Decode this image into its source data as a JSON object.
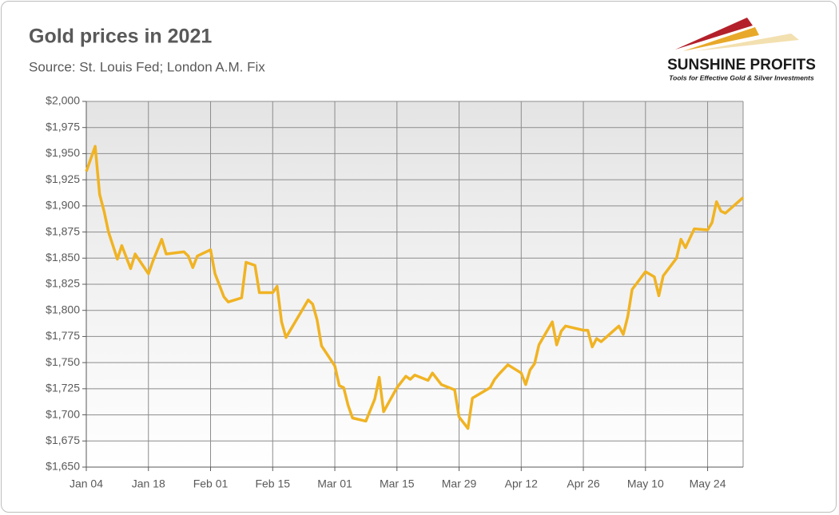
{
  "logo": {
    "name": "SUNSHINE PROFITS",
    "tagline": "Tools for Effective Gold & Silver Investments"
  },
  "chart_data": {
    "type": "line",
    "title": "Gold prices in 2021",
    "subtitle": "Source: St. Louis Fed; London A.M. Fix",
    "color": "#f0b323",
    "grid": true,
    "x": [
      0,
      2,
      3,
      4,
      5,
      7,
      8,
      10,
      11,
      14,
      15,
      17,
      18,
      22,
      23,
      24,
      25,
      28,
      29,
      31,
      32,
      35,
      36,
      38,
      39,
      42,
      43,
      44,
      45,
      50,
      51,
      52,
      53,
      56,
      57,
      58,
      59,
      60,
      63,
      65,
      66,
      67,
      70,
      72,
      73,
      74,
      77,
      78,
      80,
      83,
      84,
      86,
      87,
      91,
      92,
      93,
      95,
      98,
      99,
      100,
      101,
      102,
      105,
      106,
      107,
      108,
      112,
      113,
      114,
      115,
      116,
      120,
      121,
      122,
      123,
      126,
      128,
      129,
      130,
      133,
      134,
      135,
      137,
      140,
      141,
      142,
      143,
      144,
      148
    ],
    "values": [
      1933,
      1957,
      1911,
      1895,
      1875,
      1849,
      1862,
      1840,
      1854,
      1835,
      1847,
      1868,
      1854,
      1856,
      1852,
      1841,
      1852,
      1858,
      1835,
      1813,
      1808,
      1812,
      1846,
      1843,
      1817,
      1817,
      1823,
      1789,
      1774,
      1810,
      1806,
      1791,
      1766,
      1747,
      1728,
      1726,
      1709,
      1697,
      1694,
      1715,
      1736,
      1703,
      1726,
      1737,
      1734,
      1738,
      1733,
      1740,
      1729,
      1724,
      1698,
      1687,
      1716,
      1726,
      1734,
      1739,
      1748,
      1740,
      1729,
      1743,
      1749,
      1767,
      1789,
      1767,
      1780,
      1785,
      1781,
      1781,
      1765,
      1773,
      1770,
      1785,
      1777,
      1794,
      1820,
      1837,
      1832,
      1814,
      1833,
      1850,
      1868,
      1860,
      1878,
      1877,
      1884,
      1904,
      1895,
      1893,
      1908
    ],
    "xlim": [
      0,
      148
    ],
    "xticks": [
      {
        "value": 0,
        "label": "Jan 04"
      },
      {
        "value": 14,
        "label": "Jan 18"
      },
      {
        "value": 28,
        "label": "Feb 01"
      },
      {
        "value": 42,
        "label": "Feb 15"
      },
      {
        "value": 56,
        "label": "Mar 01"
      },
      {
        "value": 70,
        "label": "Mar 15"
      },
      {
        "value": 84,
        "label": "Mar 29"
      },
      {
        "value": 98,
        "label": "Apr 12"
      },
      {
        "value": 112,
        "label": "Apr 26"
      },
      {
        "value": 126,
        "label": "May 10"
      },
      {
        "value": 140,
        "label": "May 24"
      }
    ],
    "ylim": [
      1650,
      2000
    ],
    "yticks": [
      {
        "value": 1650,
        "label": "$1,650"
      },
      {
        "value": 1675,
        "label": "$1,675"
      },
      {
        "value": 1700,
        "label": "$1,700"
      },
      {
        "value": 1725,
        "label": "$1,725"
      },
      {
        "value": 1750,
        "label": "$1,750"
      },
      {
        "value": 1775,
        "label": "$1,775"
      },
      {
        "value": 1800,
        "label": "$1,800"
      },
      {
        "value": 1825,
        "label": "$1,825"
      },
      {
        "value": 1850,
        "label": "$1,850"
      },
      {
        "value": 1875,
        "label": "$1,875"
      },
      {
        "value": 1900,
        "label": "$1,900"
      },
      {
        "value": 1925,
        "label": "$1,925"
      },
      {
        "value": 1950,
        "label": "$1,950"
      },
      {
        "value": 1975,
        "label": "$1,975"
      },
      {
        "value": 2000,
        "label": "$2,000"
      }
    ]
  }
}
